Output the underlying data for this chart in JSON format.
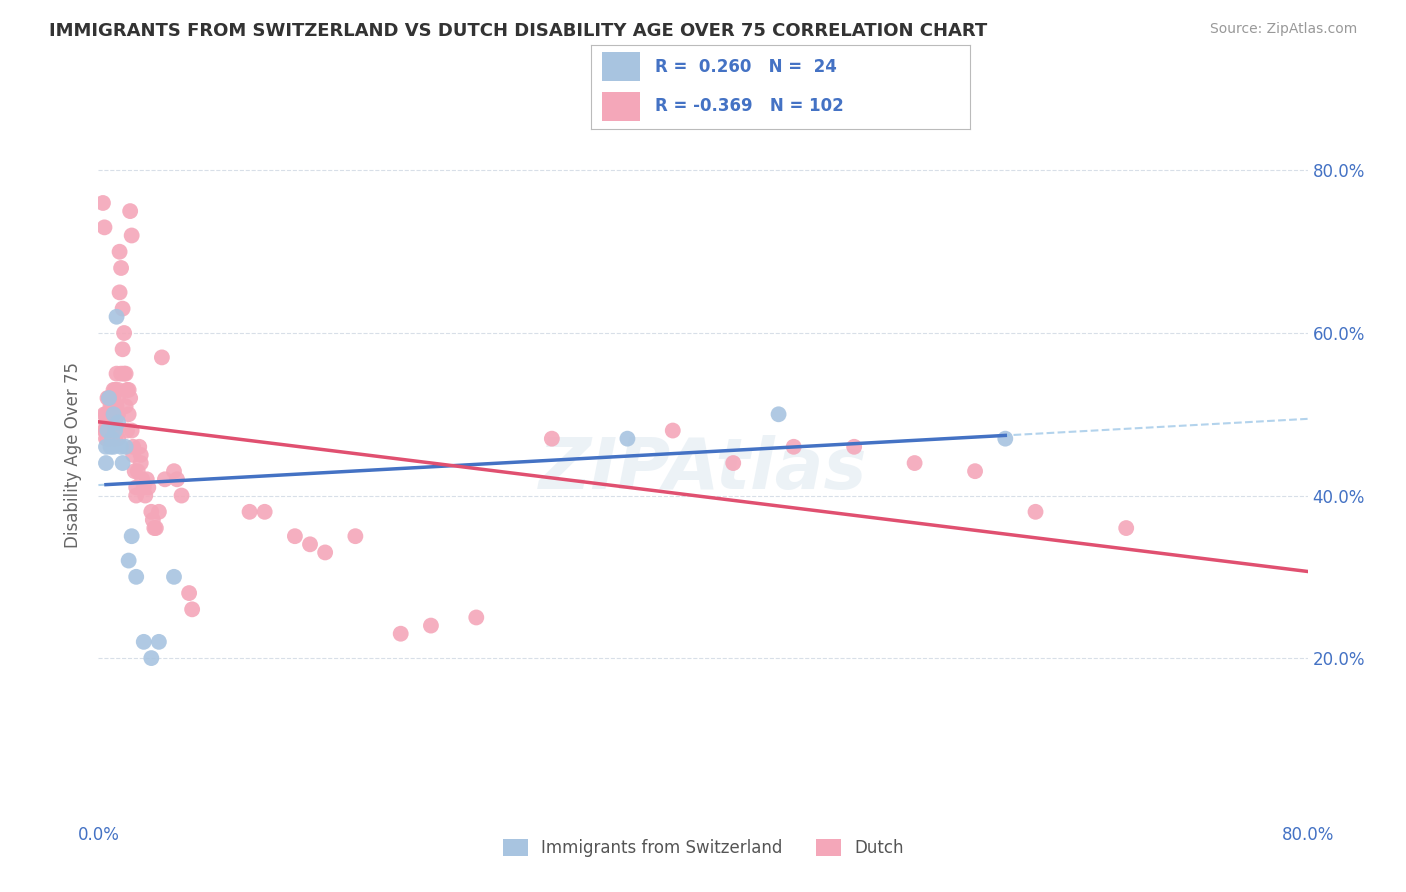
{
  "title": "IMMIGRANTS FROM SWITZERLAND VS DUTCH DISABILITY AGE OVER 75 CORRELATION CHART",
  "source": "Source: ZipAtlas.com",
  "ylabel": "Disability Age Over 75",
  "legend_labels": [
    "Immigrants from Switzerland",
    "Dutch"
  ],
  "r_swiss": 0.26,
  "n_swiss": 24,
  "r_dutch": -0.369,
  "n_dutch": 102,
  "xlim": [
    0.0,
    0.8
  ],
  "ylim": [
    0.0,
    0.9
  ],
  "xtick_labels": [
    "0.0%",
    "80.0%"
  ],
  "ytick_labels": [
    "20.0%",
    "40.0%",
    "60.0%",
    "80.0%"
  ],
  "color_swiss": "#a8c4e0",
  "color_dutch": "#f4a7b9",
  "line_color_swiss": "#4472c4",
  "line_color_dutch": "#e05070",
  "dashed_line_color": "#a0c8e8",
  "background_color": "#ffffff",
  "grid_color": "#d8dfe8",
  "watermark": "ZIPAtlas",
  "swiss_points": [
    [
      0.005,
      0.46
    ],
    [
      0.005,
      0.44
    ],
    [
      0.006,
      0.48
    ],
    [
      0.007,
      0.52
    ],
    [
      0.008,
      0.46
    ],
    [
      0.009,
      0.47
    ],
    [
      0.01,
      0.5
    ],
    [
      0.01,
      0.46
    ],
    [
      0.011,
      0.48
    ],
    [
      0.012,
      0.62
    ],
    [
      0.013,
      0.49
    ],
    [
      0.015,
      0.46
    ],
    [
      0.016,
      0.44
    ],
    [
      0.018,
      0.46
    ],
    [
      0.02,
      0.32
    ],
    [
      0.022,
      0.35
    ],
    [
      0.025,
      0.3
    ],
    [
      0.03,
      0.22
    ],
    [
      0.035,
      0.2
    ],
    [
      0.04,
      0.22
    ],
    [
      0.05,
      0.3
    ],
    [
      0.35,
      0.47
    ],
    [
      0.45,
      0.5
    ],
    [
      0.6,
      0.47
    ]
  ],
  "dutch_points": [
    [
      0.003,
      0.76
    ],
    [
      0.004,
      0.73
    ],
    [
      0.004,
      0.5
    ],
    [
      0.004,
      0.48
    ],
    [
      0.005,
      0.49
    ],
    [
      0.005,
      0.47
    ],
    [
      0.005,
      0.5
    ],
    [
      0.005,
      0.48
    ],
    [
      0.006,
      0.52
    ],
    [
      0.006,
      0.49
    ],
    [
      0.006,
      0.47
    ],
    [
      0.006,
      0.5
    ],
    [
      0.007,
      0.5
    ],
    [
      0.007,
      0.48
    ],
    [
      0.007,
      0.47
    ],
    [
      0.007,
      0.52
    ],
    [
      0.008,
      0.51
    ],
    [
      0.008,
      0.49
    ],
    [
      0.008,
      0.47
    ],
    [
      0.008,
      0.5
    ],
    [
      0.009,
      0.52
    ],
    [
      0.009,
      0.5
    ],
    [
      0.009,
      0.48
    ],
    [
      0.009,
      0.51
    ],
    [
      0.01,
      0.53
    ],
    [
      0.01,
      0.5
    ],
    [
      0.01,
      0.47
    ],
    [
      0.01,
      0.52
    ],
    [
      0.011,
      0.51
    ],
    [
      0.011,
      0.49
    ],
    [
      0.011,
      0.47
    ],
    [
      0.011,
      0.53
    ],
    [
      0.012,
      0.5
    ],
    [
      0.012,
      0.48
    ],
    [
      0.012,
      0.55
    ],
    [
      0.012,
      0.51
    ],
    [
      0.013,
      0.53
    ],
    [
      0.013,
      0.5
    ],
    [
      0.013,
      0.47
    ],
    [
      0.013,
      0.52
    ],
    [
      0.014,
      0.7
    ],
    [
      0.014,
      0.65
    ],
    [
      0.015,
      0.68
    ],
    [
      0.015,
      0.55
    ],
    [
      0.016,
      0.63
    ],
    [
      0.016,
      0.58
    ],
    [
      0.017,
      0.6
    ],
    [
      0.017,
      0.55
    ],
    [
      0.018,
      0.55
    ],
    [
      0.018,
      0.51
    ],
    [
      0.019,
      0.53
    ],
    [
      0.019,
      0.48
    ],
    [
      0.02,
      0.53
    ],
    [
      0.02,
      0.5
    ],
    [
      0.021,
      0.52
    ],
    [
      0.021,
      0.75
    ],
    [
      0.022,
      0.72
    ],
    [
      0.022,
      0.48
    ],
    [
      0.023,
      0.45
    ],
    [
      0.023,
      0.46
    ],
    [
      0.024,
      0.43
    ],
    [
      0.025,
      0.41
    ],
    [
      0.025,
      0.4
    ],
    [
      0.026,
      0.43
    ],
    [
      0.027,
      0.46
    ],
    [
      0.028,
      0.45
    ],
    [
      0.028,
      0.44
    ],
    [
      0.029,
      0.42
    ],
    [
      0.03,
      0.41
    ],
    [
      0.031,
      0.4
    ],
    [
      0.032,
      0.42
    ],
    [
      0.033,
      0.41
    ],
    [
      0.035,
      0.38
    ],
    [
      0.036,
      0.37
    ],
    [
      0.037,
      0.36
    ],
    [
      0.038,
      0.36
    ],
    [
      0.04,
      0.38
    ],
    [
      0.042,
      0.57
    ],
    [
      0.044,
      0.42
    ],
    [
      0.05,
      0.43
    ],
    [
      0.052,
      0.42
    ],
    [
      0.055,
      0.4
    ],
    [
      0.06,
      0.28
    ],
    [
      0.062,
      0.26
    ],
    [
      0.1,
      0.38
    ],
    [
      0.11,
      0.38
    ],
    [
      0.13,
      0.35
    ],
    [
      0.14,
      0.34
    ],
    [
      0.15,
      0.33
    ],
    [
      0.17,
      0.35
    ],
    [
      0.2,
      0.23
    ],
    [
      0.22,
      0.24
    ],
    [
      0.25,
      0.25
    ],
    [
      0.3,
      0.47
    ],
    [
      0.38,
      0.48
    ],
    [
      0.42,
      0.44
    ],
    [
      0.46,
      0.46
    ],
    [
      0.5,
      0.46
    ],
    [
      0.54,
      0.44
    ],
    [
      0.58,
      0.43
    ],
    [
      0.62,
      0.38
    ],
    [
      0.68,
      0.36
    ]
  ]
}
